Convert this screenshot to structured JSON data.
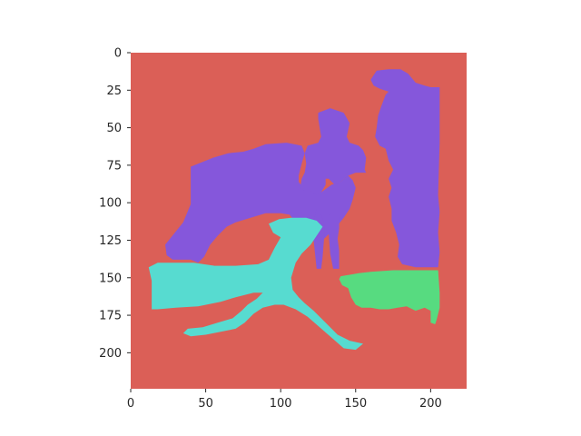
{
  "chart_data": {
    "type": "heatmap",
    "title": "",
    "xlabel": "",
    "ylabel": "",
    "xlim": [
      0,
      224
    ],
    "ylim": [
      224,
      0
    ],
    "y_inverted": true,
    "grid": false,
    "legend": "none",
    "x_ticks": [
      "0",
      "50",
      "100",
      "150",
      "200"
    ],
    "y_ticks": [
      "0",
      "25",
      "50",
      "75",
      "100",
      "125",
      "150",
      "175",
      "200"
    ],
    "x_tick_values": [
      0,
      50,
      100,
      150,
      200
    ],
    "y_tick_values": [
      0,
      25,
      50,
      75,
      100,
      125,
      150,
      175,
      200
    ],
    "colors": {
      "background": "#db5f57",
      "purple": "#8557db",
      "cyan": "#57dbd0",
      "green": "#57db80"
    },
    "regions": [
      {
        "class": "purple",
        "description_points": [
          [
            40,
            76
          ],
          [
            55,
            70
          ],
          [
            65,
            67
          ],
          [
            75,
            66
          ],
          [
            82,
            64
          ],
          [
            90,
            61
          ],
          [
            104,
            60
          ],
          [
            114,
            62
          ],
          [
            116,
            67
          ],
          [
            114,
            74
          ],
          [
            112,
            82
          ],
          [
            112,
            86
          ],
          [
            115,
            90
          ],
          [
            120,
            92
          ],
          [
            127,
            93
          ],
          [
            134,
            88
          ],
          [
            140,
            86
          ],
          [
            145,
            82
          ],
          [
            148,
            85
          ],
          [
            150,
            90
          ],
          [
            148,
            98
          ],
          [
            146,
            104
          ],
          [
            142,
            110
          ],
          [
            138,
            115
          ],
          [
            133,
            120
          ],
          [
            129,
            124
          ],
          [
            124,
            126
          ],
          [
            118,
            125
          ],
          [
            112,
            119
          ],
          [
            109,
            112
          ],
          [
            106,
            108
          ],
          [
            100,
            107
          ],
          [
            90,
            107
          ],
          [
            80,
            110
          ],
          [
            70,
            113
          ],
          [
            64,
            116
          ],
          [
            58,
            122
          ],
          [
            53,
            128
          ],
          [
            49,
            136
          ],
          [
            45,
            140
          ],
          [
            40,
            138
          ],
          [
            35,
            138
          ],
          [
            28,
            138
          ],
          [
            24,
            135
          ],
          [
            23,
            128
          ],
          [
            35,
            113
          ],
          [
            40,
            101
          ],
          [
            40,
            86
          ]
        ]
      },
      {
        "class": "purple",
        "description_points": [
          [
            125,
            40
          ],
          [
            133,
            37
          ],
          [
            142,
            40
          ],
          [
            146,
            47
          ],
          [
            144,
            56
          ],
          [
            146,
            60
          ],
          [
            152,
            62
          ],
          [
            155,
            65
          ],
          [
            157,
            70
          ],
          [
            156,
            78
          ],
          [
            157,
            80
          ],
          [
            150,
            80
          ],
          [
            145,
            82
          ],
          [
            140,
            86
          ],
          [
            136,
            88
          ],
          [
            132,
            84
          ],
          [
            130,
            84
          ],
          [
            130,
            88
          ],
          [
            127,
            93
          ],
          [
            124,
            95
          ],
          [
            120,
            92
          ],
          [
            116,
            92
          ],
          [
            113,
            90
          ],
          [
            114,
            84
          ],
          [
            116,
            80
          ],
          [
            117,
            74
          ],
          [
            116,
            67
          ],
          [
            118,
            62
          ],
          [
            125,
            60
          ],
          [
            127,
            56
          ],
          [
            126,
            50
          ],
          [
            125,
            44
          ]
        ]
      },
      {
        "class": "purple",
        "description_points": [
          [
            124,
            103
          ],
          [
            127,
            108
          ],
          [
            129,
            114
          ],
          [
            129,
            123
          ],
          [
            128,
            136
          ],
          [
            127,
            144
          ],
          [
            124,
            144
          ],
          [
            123,
            135
          ],
          [
            122,
            125
          ],
          [
            122,
            113
          ]
        ]
      },
      {
        "class": "purple",
        "description_points": [
          [
            132,
            108
          ],
          [
            136,
            107
          ],
          [
            139,
            110
          ],
          [
            139,
            117
          ],
          [
            138,
            124
          ],
          [
            139,
            132
          ],
          [
            139,
            144
          ],
          [
            135,
            144
          ],
          [
            133,
            134
          ],
          [
            132,
            120
          ]
        ]
      },
      {
        "class": "purple",
        "description_points": [
          [
            164,
            12
          ],
          [
            172,
            11
          ],
          [
            180,
            11
          ],
          [
            185,
            14
          ],
          [
            190,
            20
          ],
          [
            196,
            22
          ],
          [
            200,
            23
          ],
          [
            206,
            23
          ],
          [
            206,
            60
          ],
          [
            205,
            95
          ],
          [
            206,
            106
          ],
          [
            205,
            120
          ],
          [
            206,
            133
          ],
          [
            205,
            143
          ],
          [
            190,
            143
          ],
          [
            181,
            141
          ],
          [
            178,
            136
          ],
          [
            179,
            128
          ],
          [
            177,
            120
          ],
          [
            174,
            112
          ],
          [
            174,
            104
          ],
          [
            172,
            96
          ],
          [
            174,
            90
          ],
          [
            172,
            84
          ],
          [
            175,
            78
          ],
          [
            172,
            72
          ],
          [
            170,
            64
          ],
          [
            166,
            62
          ],
          [
            163,
            56
          ],
          [
            164,
            50
          ],
          [
            165,
            42
          ],
          [
            167,
            36
          ],
          [
            170,
            28
          ],
          [
            172,
            26
          ],
          [
            166,
            24
          ],
          [
            162,
            22
          ],
          [
            160,
            18
          ]
        ]
      },
      {
        "class": "cyan",
        "description_points": [
          [
            12,
            143
          ],
          [
            18,
            140
          ],
          [
            30,
            140
          ],
          [
            42,
            140
          ],
          [
            56,
            142
          ],
          [
            70,
            142
          ],
          [
            85,
            141
          ],
          [
            92,
            138
          ],
          [
            96,
            130
          ],
          [
            100,
            123
          ],
          [
            95,
            120
          ],
          [
            92,
            114
          ],
          [
            99,
            111
          ],
          [
            107,
            110
          ],
          [
            117,
            110
          ],
          [
            124,
            112
          ],
          [
            128,
            116
          ],
          [
            124,
            122
          ],
          [
            120,
            128
          ],
          [
            114,
            134
          ],
          [
            110,
            140
          ],
          [
            107,
            150
          ],
          [
            108,
            158
          ],
          [
            112,
            163
          ],
          [
            116,
            167
          ],
          [
            122,
            172
          ],
          [
            130,
            180
          ],
          [
            138,
            188
          ],
          [
            146,
            192
          ],
          [
            155,
            194
          ],
          [
            150,
            198
          ],
          [
            142,
            197
          ],
          [
            134,
            190
          ],
          [
            126,
            183
          ],
          [
            118,
            176
          ],
          [
            110,
            171
          ],
          [
            102,
            168
          ],
          [
            96,
            168
          ],
          [
            88,
            170
          ],
          [
            82,
            174
          ],
          [
            76,
            180
          ],
          [
            70,
            184
          ],
          [
            60,
            186
          ],
          [
            50,
            188
          ],
          [
            40,
            189
          ],
          [
            35,
            187
          ],
          [
            38,
            184
          ],
          [
            48,
            183
          ],
          [
            58,
            180
          ],
          [
            68,
            177
          ],
          [
            74,
            172
          ],
          [
            78,
            168
          ],
          [
            84,
            164
          ],
          [
            88,
            160
          ],
          [
            82,
            160
          ],
          [
            70,
            163
          ],
          [
            60,
            166
          ],
          [
            45,
            169
          ],
          [
            30,
            170
          ],
          [
            18,
            171
          ],
          [
            14,
            171
          ],
          [
            14,
            152
          ]
        ]
      },
      {
        "class": "green",
        "description_points": [
          [
            140,
            149
          ],
          [
            146,
            148
          ],
          [
            152,
            147
          ],
          [
            160,
            146
          ],
          [
            175,
            145
          ],
          [
            190,
            145
          ],
          [
            205,
            145
          ],
          [
            206,
            160
          ],
          [
            206,
            170
          ],
          [
            204,
            178
          ],
          [
            203,
            181
          ],
          [
            200,
            180
          ],
          [
            200,
            172
          ],
          [
            196,
            170
          ],
          [
            190,
            172
          ],
          [
            184,
            169
          ],
          [
            178,
            170
          ],
          [
            172,
            171
          ],
          [
            166,
            171
          ],
          [
            160,
            170
          ],
          [
            154,
            170
          ],
          [
            150,
            168
          ],
          [
            147,
            163
          ],
          [
            145,
            157
          ],
          [
            141,
            155
          ],
          [
            139,
            151
          ]
        ]
      }
    ]
  }
}
